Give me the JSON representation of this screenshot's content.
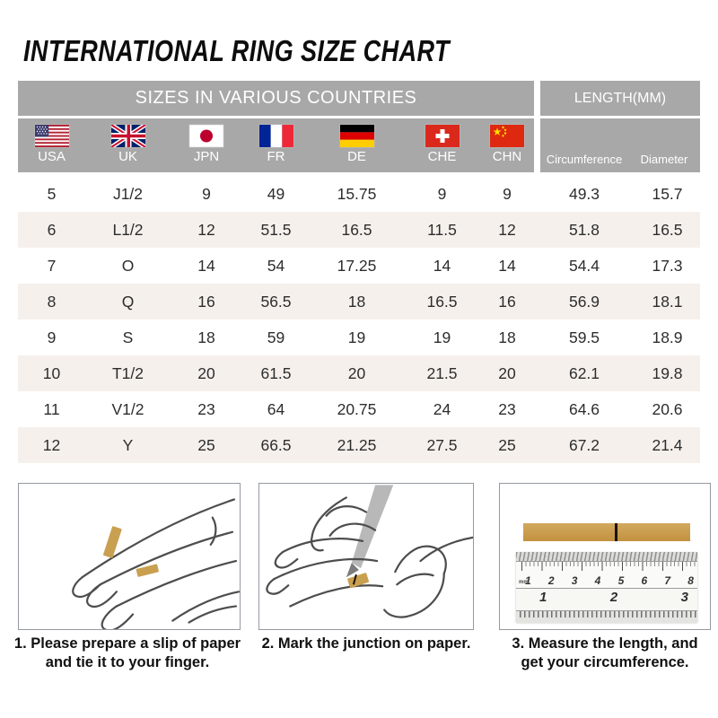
{
  "title": "INTERNATIONAL RING SIZE CHART",
  "table": {
    "header_left": "SIZES IN VARIOUS COUNTRIES",
    "header_right": "LENGTH(MM)",
    "countries": [
      {
        "code": "USA",
        "flag": "usa-flag-icon"
      },
      {
        "code": "UK",
        "flag": "uk-flag-icon"
      },
      {
        "code": "JPN",
        "flag": "japan-flag-icon"
      },
      {
        "code": "FR",
        "flag": "france-flag-icon"
      },
      {
        "code": "DE",
        "flag": "germany-flag-icon"
      },
      {
        "code": "CHE",
        "flag": "switzerland-flag-icon"
      },
      {
        "code": "CHN",
        "flag": "china-flag-icon"
      }
    ],
    "length_columns": [
      "Circumference",
      "Diameter"
    ],
    "rows": [
      [
        "5",
        "J1/2",
        "9",
        "49",
        "15.75",
        "9",
        "9",
        "49.3",
        "15.7"
      ],
      [
        "6",
        "L1/2",
        "12",
        "51.5",
        "16.5",
        "11.5",
        "12",
        "51.8",
        "16.5"
      ],
      [
        "7",
        "O",
        "14",
        "54",
        "17.25",
        "14",
        "14",
        "54.4",
        "17.3"
      ],
      [
        "8",
        "Q",
        "16",
        "56.5",
        "18",
        "16.5",
        "16",
        "56.9",
        "18.1"
      ],
      [
        "9",
        "S",
        "18",
        "59",
        "19",
        "19",
        "18",
        "59.5",
        "18.9"
      ],
      [
        "10",
        "T1/2",
        "20",
        "61.5",
        "20",
        "21.5",
        "20",
        "62.1",
        "19.8"
      ],
      [
        "11",
        "V1/2",
        "23",
        "64",
        "20.75",
        "24",
        "23",
        "64.6",
        "20.6"
      ],
      [
        "12",
        "Y",
        "25",
        "66.5",
        "21.25",
        "27.5",
        "25",
        "67.2",
        "21.4"
      ]
    ]
  },
  "steps": [
    {
      "caption_line1": "1. Please prepare a slip of paper",
      "caption_line2": "and tie it to your finger."
    },
    {
      "caption_line1": "2. Mark the junction on paper.",
      "caption_line2": ""
    },
    {
      "caption_line1": "3. Measure the length, and",
      "caption_line2": "get your circumference."
    }
  ],
  "ruler": {
    "unit_top": "mm",
    "cm_labels": [
      "1",
      "2",
      "3",
      "4",
      "5",
      "6",
      "7",
      "8"
    ],
    "inch_labels": [
      "1",
      "2",
      "3"
    ]
  },
  "colors": {
    "header_gray": "#a8a8a8",
    "row_alt": "#f6f0ec",
    "strip_gold": "#c9a04f",
    "text_dark": "#2d2d2d"
  }
}
